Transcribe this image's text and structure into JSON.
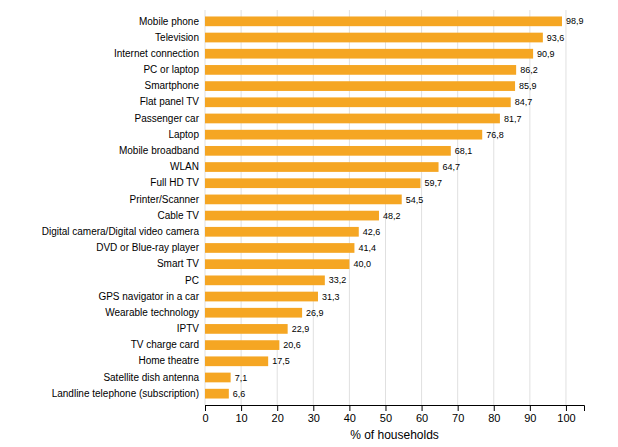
{
  "chart_data": {
    "type": "bar",
    "orientation": "horizontal",
    "categories": [
      "Landline telephone (subscription)",
      "Satellite dish antenna",
      "Home theatre",
      "TV charge card",
      "IPTV",
      "Wearable technology",
      "GPS navigator in a car",
      "PC",
      "Smart TV",
      "DVD or Blue-ray player",
      "Digital camera/Digital video camera",
      "Cable TV",
      "Printer/Scanner",
      "Full HD TV",
      "WLAN",
      "Mobile broadband",
      "Laptop",
      "Passenger car",
      "Flat panel TV",
      "Smartphone",
      "PC or laptop",
      "Internet connection",
      "Television",
      "Mobile phone"
    ],
    "values": [
      6.6,
      7.1,
      17.5,
      20.6,
      22.9,
      26.9,
      31.3,
      33.2,
      40.0,
      41.4,
      42.6,
      48.2,
      54.5,
      59.7,
      64.7,
      68.1,
      76.8,
      81.7,
      84.7,
      85.9,
      86.2,
      90.9,
      93.6,
      98.9
    ],
    "value_labels": [
      "6,6",
      "7,1",
      "17,5",
      "20,6",
      "22,9",
      "26,9",
      "31,3",
      "33,2",
      "40,0",
      "41,4",
      "42,6",
      "48,2",
      "54,5",
      "59,7",
      "64,7",
      "68,1",
      "76,8",
      "81,7",
      "84,7",
      "85,9",
      "86,2",
      "90,9",
      "93,6",
      "98,9"
    ],
    "color": "#F5A623",
    "xlabel": "% of households",
    "xlim": [
      0,
      105
    ],
    "xticks": [
      0,
      10,
      20,
      30,
      40,
      50,
      60,
      70,
      80,
      90,
      100
    ],
    "grid": true,
    "data_labels": true
  }
}
